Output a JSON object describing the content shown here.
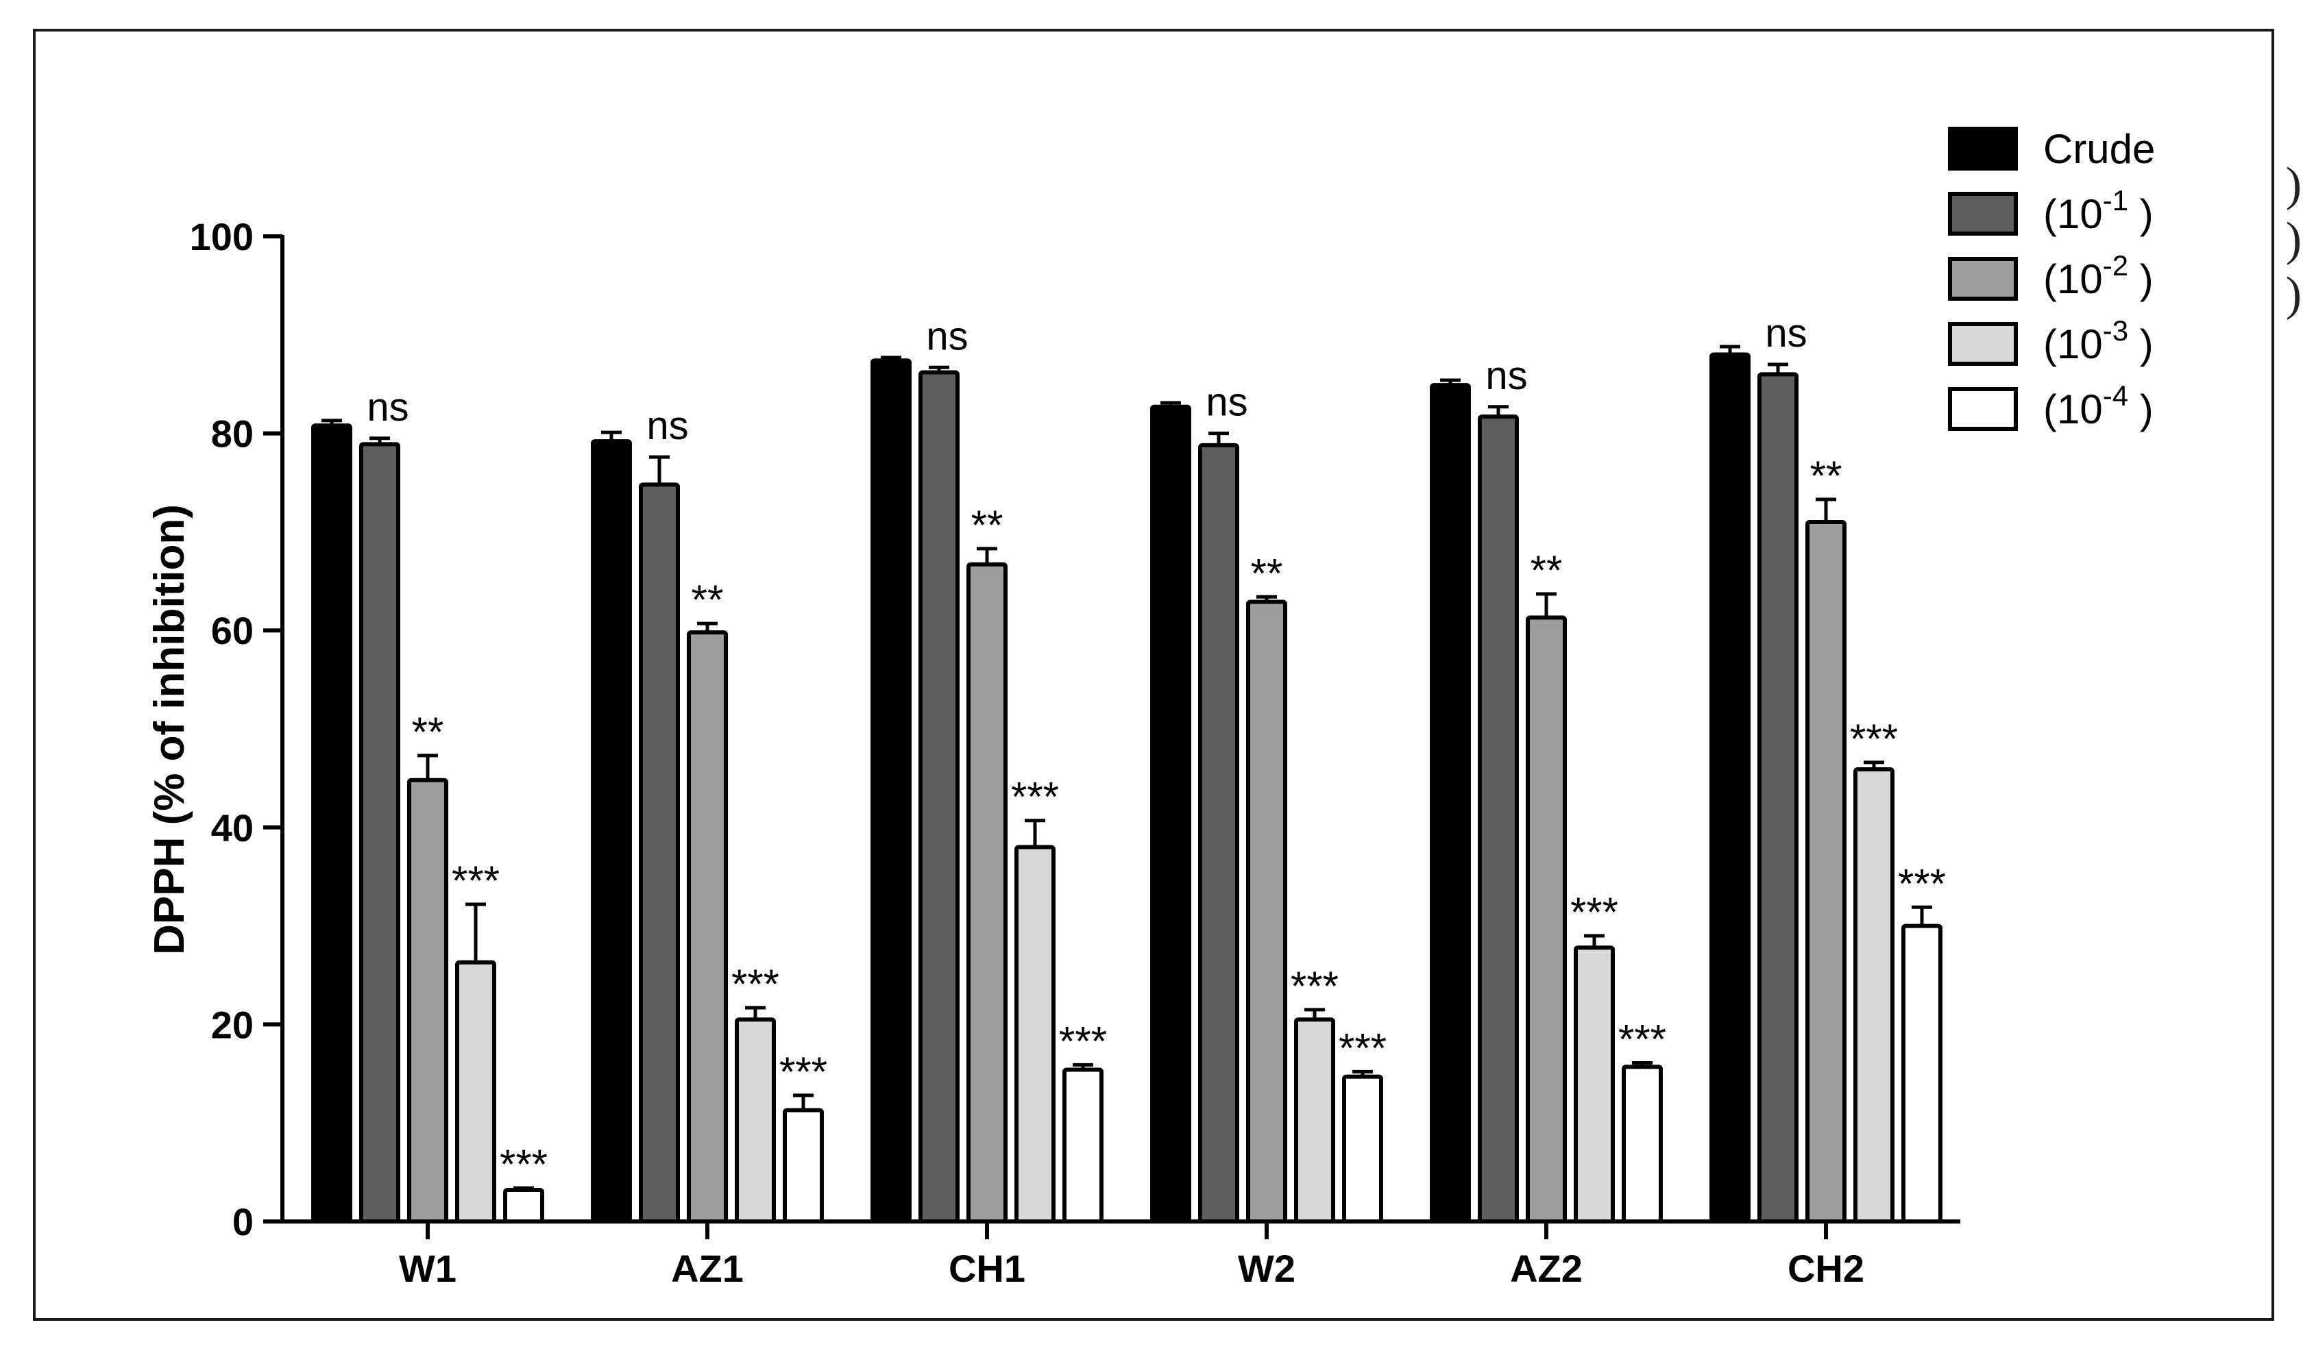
{
  "chart_data": {
    "type": "bar",
    "title": "",
    "xlabel": "",
    "ylabel": "DPPH (% of inhibition)",
    "ylim": [
      0,
      100
    ],
    "yticks": [
      0,
      20,
      40,
      60,
      80,
      100
    ],
    "grid": false,
    "legend_position": "top-right",
    "categories": [
      "W1",
      "AZ1",
      "CH1",
      "W2",
      "AZ2",
      "CH2"
    ],
    "series": [
      {
        "name": "Crude",
        "legend_base": "",
        "legend_exp": "",
        "legend_suffix": "",
        "color": "#000000",
        "values": [
          80.8,
          79.2,
          87.4,
          82.7,
          84.9,
          88.0
        ],
        "errors": [
          0.5,
          0.9,
          0.3,
          0.4,
          0.5,
          0.8
        ],
        "significance": [
          "",
          "",
          "",
          "",
          "",
          ""
        ]
      },
      {
        "name": "(10-1 )",
        "legend_base": "(10",
        "legend_exp": "-1",
        "legend_suffix": " )",
        "color": "#5e5e5e",
        "values": [
          78.9,
          74.8,
          86.2,
          78.8,
          81.7,
          86.0
        ],
        "errors": [
          0.6,
          2.8,
          0.5,
          1.2,
          1.0,
          1.0
        ],
        "significance": [
          "ns",
          "ns",
          "ns",
          "ns",
          "ns",
          "ns"
        ]
      },
      {
        "name": "(10-2 )",
        "legend_base": "(10",
        "legend_exp": "-2",
        "legend_suffix": " )",
        "color": "#9e9e9e",
        "values": [
          44.8,
          59.8,
          66.7,
          62.9,
          61.3,
          71.0
        ],
        "errors": [
          2.5,
          0.9,
          1.6,
          0.5,
          2.4,
          2.3
        ],
        "significance": [
          "**",
          "**",
          "**",
          "**",
          "**",
          "**"
        ]
      },
      {
        "name": "(10-3 )",
        "legend_base": "(10",
        "legend_exp": "-3",
        "legend_suffix": " )",
        "color": "#d8d8d8",
        "values": [
          26.3,
          20.5,
          38.0,
          20.5,
          27.8,
          45.9
        ],
        "errors": [
          5.9,
          1.2,
          2.7,
          1.0,
          1.2,
          0.7
        ],
        "significance": [
          "***",
          "***",
          "***",
          "***",
          "***",
          "***"
        ]
      },
      {
        "name": "(10-4 )",
        "legend_base": "(10",
        "legend_exp": "-4",
        "legend_suffix": " )",
        "color": "#ffffff",
        "values": [
          3.2,
          11.3,
          15.4,
          14.7,
          15.7,
          30.0
        ],
        "errors": [
          0.2,
          1.5,
          0.5,
          0.5,
          0.4,
          1.9
        ],
        "significance": [
          "***",
          "***",
          "***",
          "***",
          "***",
          "***"
        ]
      }
    ]
  },
  "decor": {
    "bracket_glyphs": [
      ")",
      ")",
      ")"
    ]
  }
}
